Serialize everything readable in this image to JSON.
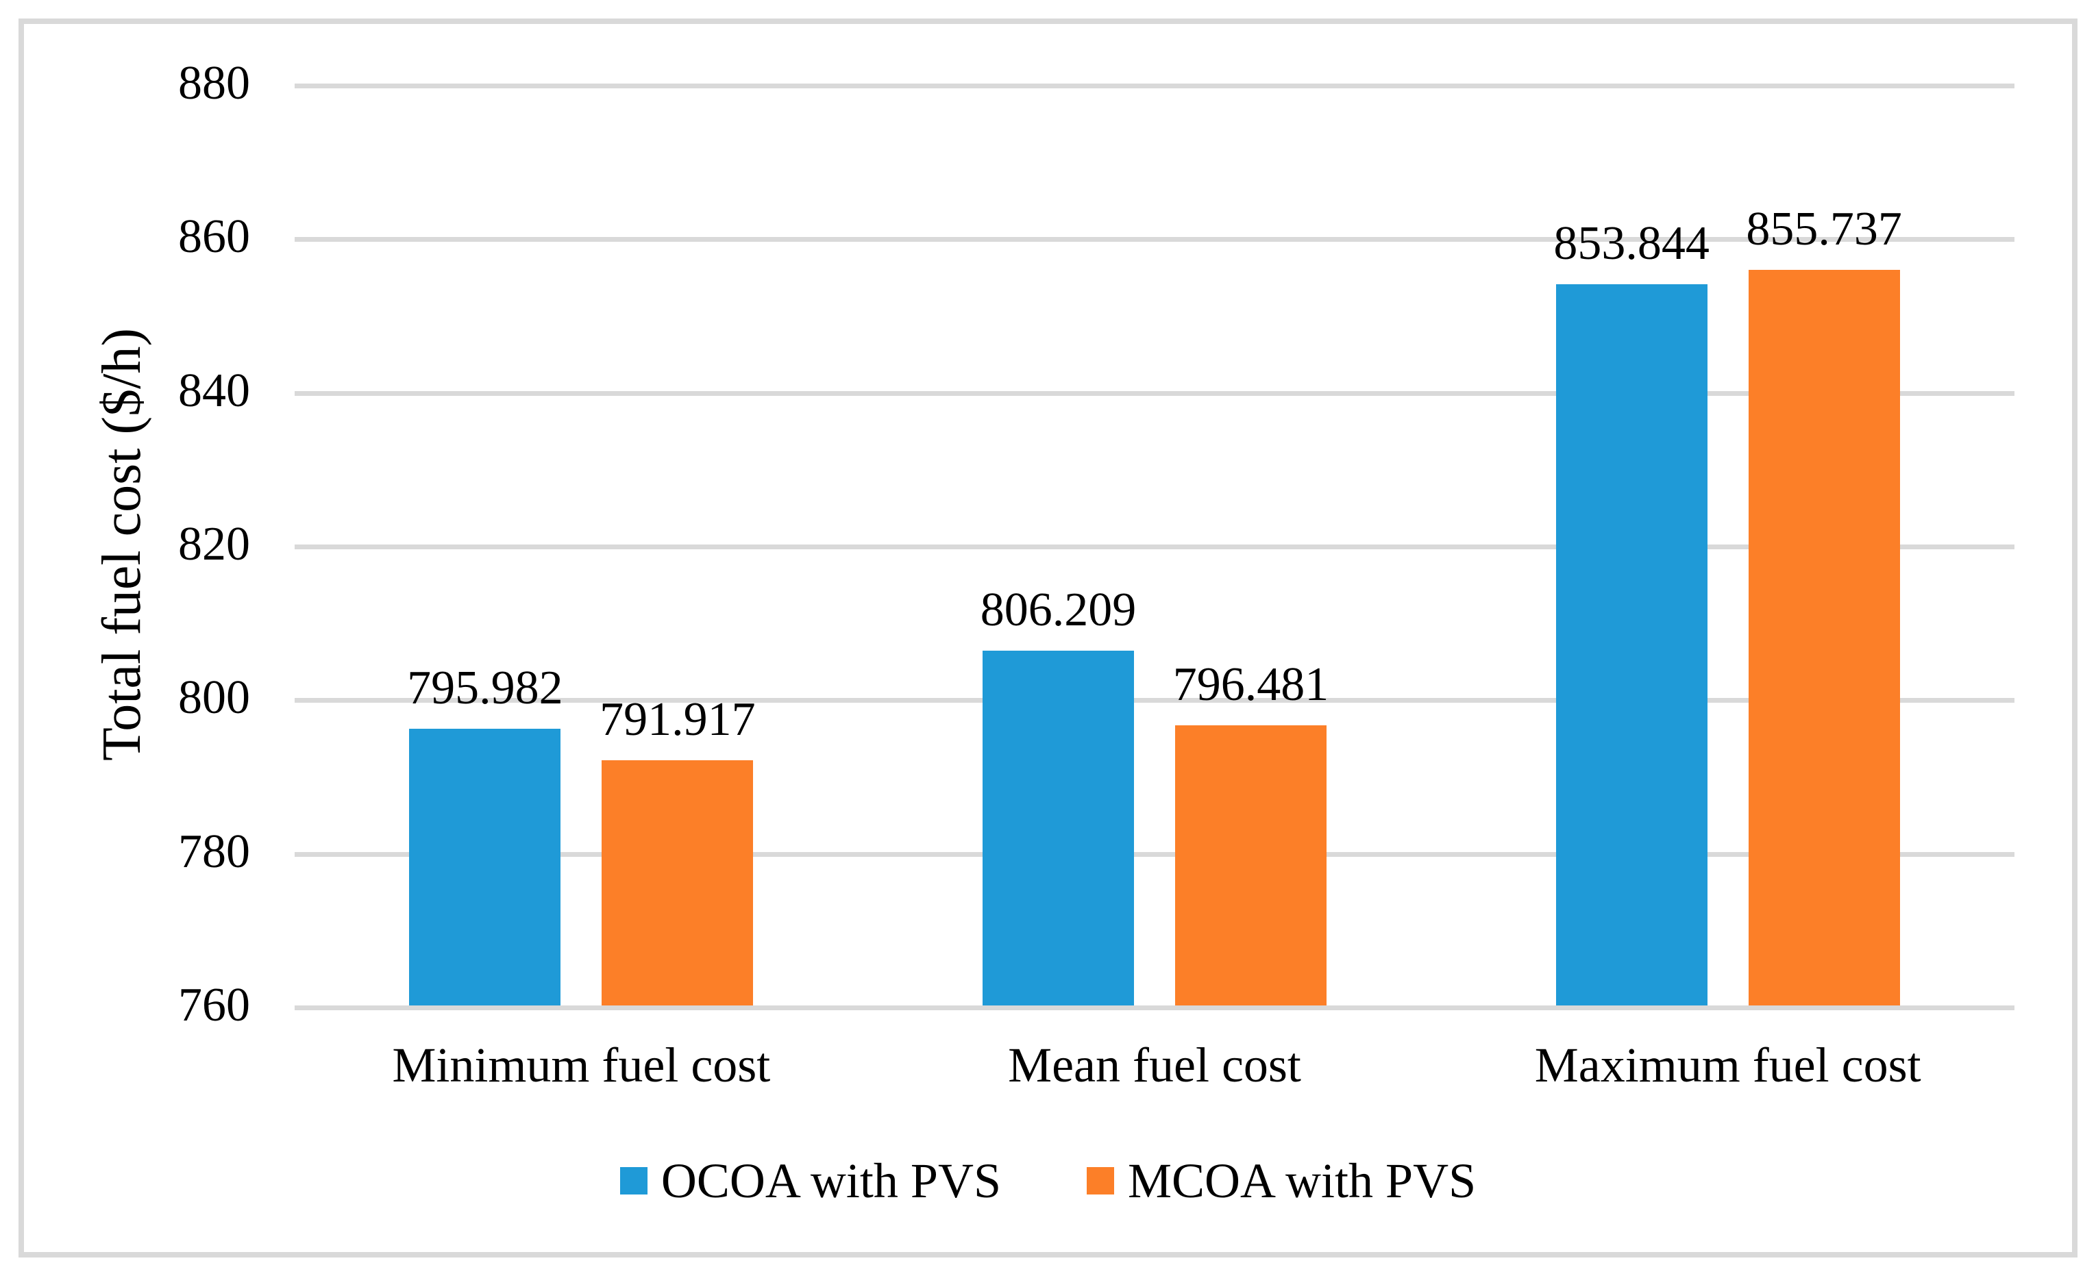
{
  "figure": {
    "background": "#ffffff",
    "frame_color": "#d9d9d9"
  },
  "chart_data": {
    "type": "bar",
    "title": "",
    "xlabel": "",
    "ylabel": "Total fuel cost ($/h)",
    "categories": [
      "Minimum fuel cost",
      "Mean fuel cost",
      "Maximum fuel cost"
    ],
    "series": [
      {
        "name": "OCOA with PVS",
        "color": "#1f9ad7",
        "values": [
          795.982,
          806.209,
          853.844
        ],
        "labels": [
          "795.982",
          "806.209",
          "853.844"
        ]
      },
      {
        "name": "MCOA with PVS",
        "color": "#fc7f28",
        "values": [
          791.917,
          796.481,
          855.737
        ],
        "labels": [
          "791.917",
          "796.481",
          "855.737"
        ]
      }
    ],
    "ylim": [
      760,
      880
    ],
    "ytick_step": 20,
    "yticks": [
      "760",
      "780",
      "800",
      "820",
      "840",
      "860",
      "880"
    ],
    "grid": true,
    "gridline_color": "#d9d9d9",
    "legend_position": "bottom"
  }
}
